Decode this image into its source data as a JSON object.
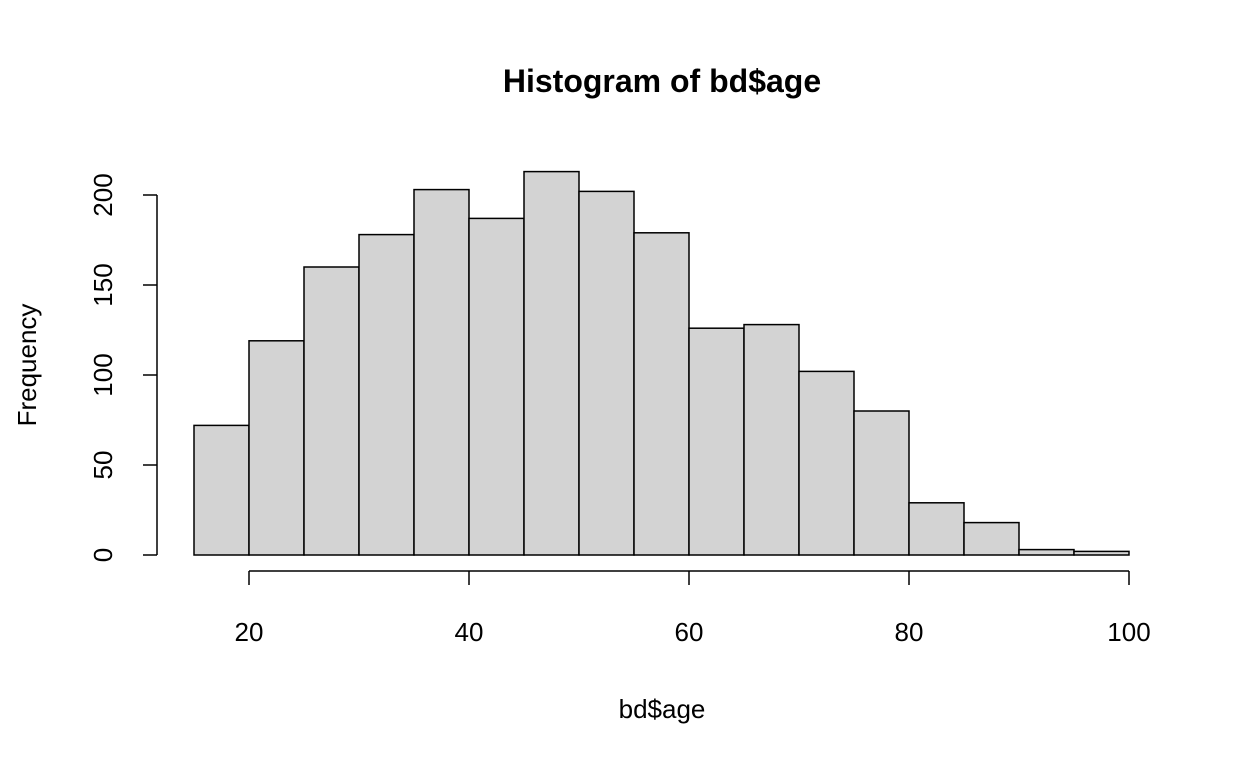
{
  "chart_data": {
    "type": "bar",
    "title": "Histogram of bd$age",
    "xlabel": "bd$age",
    "ylabel": "Frequency",
    "bins": [
      {
        "start": 15,
        "end": 20,
        "count": 72
      },
      {
        "start": 20,
        "end": 25,
        "count": 119
      },
      {
        "start": 25,
        "end": 30,
        "count": 160
      },
      {
        "start": 30,
        "end": 35,
        "count": 178
      },
      {
        "start": 35,
        "end": 40,
        "count": 203
      },
      {
        "start": 40,
        "end": 45,
        "count": 187
      },
      {
        "start": 45,
        "end": 50,
        "count": 213
      },
      {
        "start": 50,
        "end": 55,
        "count": 202
      },
      {
        "start": 55,
        "end": 60,
        "count": 179
      },
      {
        "start": 60,
        "end": 65,
        "count": 126
      },
      {
        "start": 65,
        "end": 70,
        "count": 128
      },
      {
        "start": 70,
        "end": 75,
        "count": 102
      },
      {
        "start": 75,
        "end": 80,
        "count": 80
      },
      {
        "start": 80,
        "end": 85,
        "count": 29
      },
      {
        "start": 85,
        "end": 90,
        "count": 18
      },
      {
        "start": 90,
        "end": 95,
        "count": 3
      },
      {
        "start": 95,
        "end": 100,
        "count": 2
      }
    ],
    "xticks": [
      20,
      40,
      60,
      80,
      100
    ],
    "yticks": [
      0,
      50,
      100,
      150,
      200
    ],
    "xlim": [
      15,
      100
    ],
    "ylim": [
      0,
      213
    ],
    "grid": false,
    "bar_fill": "#d3d3d3",
    "bar_stroke": "#000000"
  }
}
